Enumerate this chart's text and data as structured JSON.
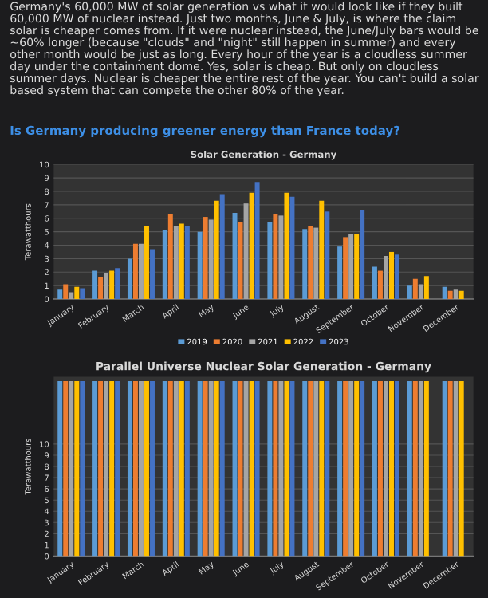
{
  "chart_data": [
    {
      "type": "bar",
      "title": "Solar Generation - Germany",
      "ylabel": "Terawatthours",
      "annotations": [
        "Germany's 60,000 MW of solar generation vs what it would look like if they built 60,000 MW of nuclear instead. Just two months, June & July, is where the claim solar is cheaper comes from. If it were nuclear instead, the June/July bars would be ~60% longer (because \"clouds\" and \"night\" still happen in summer) and every other month would be just as long. Every hour of the year is a cloudless summer day under the containment dome. Yes, solar is cheap. But only on cloudless summer days. Nuclear is cheaper the entire rest of the year. You can't build a solar based system that can compete the other 80% of the year.",
        "Is Germany producing greener energy than France today?"
      ],
      "categories": [
        "January",
        "February",
        "March",
        "April",
        "May",
        "June",
        "July",
        "August",
        "September",
        "October",
        "November",
        "December"
      ],
      "series": [
        {
          "name": "2019",
          "color": "#5b9bd5",
          "values": [
            0.7,
            2.1,
            3.0,
            5.1,
            5.0,
            6.4,
            5.7,
            5.2,
            3.9,
            2.4,
            1.0,
            0.9
          ]
        },
        {
          "name": "2020",
          "color": "#ed7d31",
          "values": [
            1.1,
            1.6,
            4.1,
            6.3,
            6.1,
            5.7,
            6.3,
            5.4,
            4.6,
            2.1,
            1.5,
            0.6
          ]
        },
        {
          "name": "2021",
          "color": "#a5a5a5",
          "values": [
            0.5,
            1.9,
            4.1,
            5.4,
            5.9,
            7.1,
            6.2,
            5.3,
            4.8,
            3.2,
            1.1,
            0.7
          ]
        },
        {
          "name": "2022",
          "color": "#ffc000",
          "values": [
            0.9,
            2.1,
            5.4,
            5.6,
            7.3,
            7.9,
            7.9,
            7.3,
            4.8,
            3.5,
            1.7,
            0.6
          ]
        },
        {
          "name": "2023",
          "color": "#4472c4",
          "values": [
            0.8,
            2.3,
            3.7,
            5.4,
            7.8,
            8.7,
            7.6,
            6.5,
            6.6,
            3.3,
            null,
            null
          ]
        }
      ],
      "ylim": [
        0,
        10
      ],
      "yticks": [
        0,
        1,
        2,
        3,
        4,
        5,
        6,
        7,
        8,
        9,
        10
      ],
      "grid": "y",
      "legend": "bottom"
    },
    {
      "type": "bar",
      "title": "Parallel Universe Nuclear Solar Generation - Germany",
      "ylabel": "Terawatthours",
      "categories": [
        "January",
        "February",
        "March",
        "April",
        "May",
        "June",
        "July",
        "August",
        "September",
        "October",
        "November",
        "December"
      ],
      "series": [
        {
          "color": "#5b9bd5",
          "values": [
            15.6,
            15.6,
            15.6,
            15.6,
            15.6,
            15.6,
            15.6,
            15.6,
            15.6,
            15.6,
            15.6,
            15.6
          ]
        },
        {
          "color": "#ed7d31",
          "values": [
            15.6,
            15.6,
            15.6,
            15.6,
            15.6,
            15.6,
            15.6,
            15.6,
            15.6,
            15.6,
            15.6,
            15.6
          ]
        },
        {
          "color": "#a5a5a5",
          "values": [
            15.6,
            15.6,
            15.6,
            15.6,
            15.6,
            15.6,
            15.6,
            15.6,
            15.6,
            15.6,
            15.6,
            15.6
          ]
        },
        {
          "color": "#ffc000",
          "values": [
            15.6,
            15.6,
            15.6,
            15.6,
            15.6,
            15.6,
            15.6,
            15.6,
            15.6,
            15.6,
            15.6,
            15.6
          ]
        },
        {
          "color": "#4472c4",
          "values": [
            15.6,
            15.6,
            15.6,
            15.6,
            15.6,
            15.6,
            15.6,
            15.6,
            15.6,
            15.6,
            null,
            null
          ]
        }
      ],
      "ylim": [
        0,
        16
      ],
      "yticks": [
        0,
        1,
        2,
        3,
        4,
        5,
        6,
        7,
        8,
        9,
        10
      ],
      "grid": "y"
    }
  ]
}
